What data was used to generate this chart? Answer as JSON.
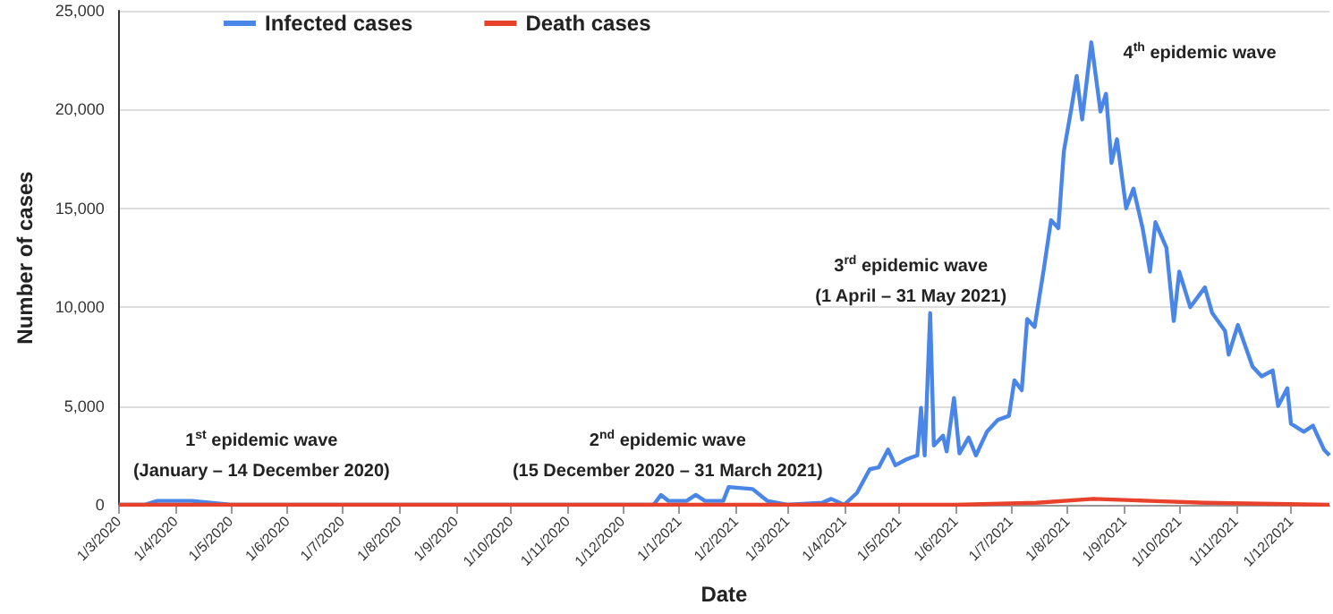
{
  "chart_data": {
    "type": "line",
    "xlabel": "Date",
    "ylabel": "Number of cases",
    "xlim": [
      "2020-03-01",
      "2021-12-22"
    ],
    "xticks": [
      {
        "value": "2020-03-01",
        "label": "1/3/2020"
      },
      {
        "value": "2020-04-01",
        "label": "1/4/2020"
      },
      {
        "value": "2020-05-01",
        "label": "1/5/2020"
      },
      {
        "value": "2020-06-01",
        "label": "1/6/2020"
      },
      {
        "value": "2020-07-01",
        "label": "1/7/2020"
      },
      {
        "value": "2020-08-01",
        "label": "1/8/2020"
      },
      {
        "value": "2020-09-01",
        "label": "1/9/2020"
      },
      {
        "value": "2020-10-01",
        "label": "1/10/2020"
      },
      {
        "value": "2020-11-01",
        "label": "1/11/2020"
      },
      {
        "value": "2020-12-01",
        "label": "1/12/2020"
      },
      {
        "value": "2021-01-01",
        "label": "1/1/2021"
      },
      {
        "value": "2021-02-01",
        "label": "1/2/2021"
      },
      {
        "value": "2021-03-01",
        "label": "1/3/2021"
      },
      {
        "value": "2021-04-01",
        "label": "1/4/2021"
      },
      {
        "value": "2021-05-01",
        "label": "1/5/2021"
      },
      {
        "value": "2021-06-01",
        "label": "1/6/2021"
      },
      {
        "value": "2021-07-01",
        "label": "1/7/2021"
      },
      {
        "value": "2021-08-01",
        "label": "1/8/2021"
      },
      {
        "value": "2021-09-01",
        "label": "1/9/2021"
      },
      {
        "value": "2021-10-01",
        "label": "1/10/2021"
      },
      {
        "value": "2021-11-01",
        "label": "1/11/2021"
      },
      {
        "value": "2021-12-01",
        "label": "1/12/2021"
      }
    ],
    "ylim": [
      0,
      25000
    ],
    "yticks": [
      {
        "value": 0,
        "label": "0"
      },
      {
        "value": 5000,
        "label": "5,000"
      },
      {
        "value": 10000,
        "label": "10,000"
      },
      {
        "value": 15000,
        "label": "15,000"
      },
      {
        "value": 20000,
        "label": "20,000"
      },
      {
        "value": 25000,
        "label": "25,000"
      }
    ],
    "grid": "y",
    "legend": "top",
    "marker": "none",
    "line_style": "solid",
    "series": [
      {
        "name": "Infected cases",
        "color": "#4a86e8",
        "x": [
          "2020-03-01",
          "2020-03-15",
          "2020-03-22",
          "2020-04-01",
          "2020-04-10",
          "2020-04-20",
          "2020-05-01",
          "2020-05-15",
          "2020-12-01",
          "2020-12-18",
          "2020-12-22",
          "2020-12-26",
          "2021-01-05",
          "2021-01-10",
          "2021-01-15",
          "2021-01-25",
          "2021-01-28",
          "2021-02-10",
          "2021-02-18",
          "2021-03-01",
          "2021-03-20",
          "2021-03-25",
          "2021-04-01",
          "2021-04-08",
          "2021-04-15",
          "2021-04-20",
          "2021-04-25",
          "2021-04-29",
          "2021-05-05",
          "2021-05-11",
          "2021-05-13",
          "2021-05-15",
          "2021-05-18",
          "2021-05-20",
          "2021-05-25",
          "2021-05-27",
          "2021-05-31",
          "2021-06-03",
          "2021-06-08",
          "2021-06-12",
          "2021-06-18",
          "2021-06-24",
          "2021-06-30",
          "2021-07-03",
          "2021-07-07",
          "2021-07-10",
          "2021-07-14",
          "2021-07-19",
          "2021-07-23",
          "2021-07-27",
          "2021-07-30",
          "2021-08-03",
          "2021-08-06",
          "2021-08-09",
          "2021-08-14",
          "2021-08-19",
          "2021-08-22",
          "2021-08-25",
          "2021-08-28",
          "2021-09-02",
          "2021-09-06",
          "2021-09-11",
          "2021-09-15",
          "2021-09-18",
          "2021-09-24",
          "2021-09-28",
          "2021-10-01",
          "2021-10-07",
          "2021-10-15",
          "2021-10-19",
          "2021-10-26",
          "2021-10-28",
          "2021-11-02",
          "2021-11-10",
          "2021-11-15",
          "2021-11-21",
          "2021-11-24",
          "2021-11-29",
          "2021-12-01",
          "2021-12-08",
          "2021-12-13",
          "2021-12-19",
          "2021-12-22"
        ],
        "values": [
          0,
          0,
          200,
          200,
          200,
          100,
          0,
          0,
          0,
          0,
          500,
          200,
          200,
          500,
          200,
          200,
          900,
          800,
          200,
          0,
          100,
          300,
          0,
          600,
          1800,
          1900,
          2800,
          2000,
          2300,
          2500,
          4900,
          2500,
          9700,
          3000,
          3500,
          2700,
          5400,
          2600,
          3400,
          2500,
          3700,
          4300,
          4500,
          6300,
          5800,
          9400,
          9000,
          11900,
          14400,
          14000,
          17900,
          20000,
          21700,
          19500,
          23400,
          19900,
          20800,
          17300,
          18500,
          15000,
          16000,
          14000,
          11800,
          14300,
          13000,
          9300,
          11800,
          10000,
          11000,
          9700,
          8800,
          7600,
          9100,
          7000,
          6500,
          6800,
          5000,
          5900,
          4100,
          3700,
          4000,
          2800,
          2500
        ]
      },
      {
        "name": "Death cases",
        "color": "#e8412c",
        "x": [
          "2020-03-01",
          "2021-04-01",
          "2021-06-01",
          "2021-07-15",
          "2021-08-15",
          "2021-09-15",
          "2021-10-15",
          "2021-12-22"
        ],
        "values": [
          0,
          0,
          0,
          100,
          300,
          200,
          100,
          0
        ]
      }
    ],
    "annotations": [
      "1$^{st}$ epidemic wave\n(January – 14 December 2020)",
      "2$^{nd}$ epidemic wave\n(15 December 2020 – 31 March 2021)",
      "3$^{rd}$ epidemic wave\n(1 April – 31 May 2021)",
      "4$^{th}$ epidemic wave"
    ]
  }
}
